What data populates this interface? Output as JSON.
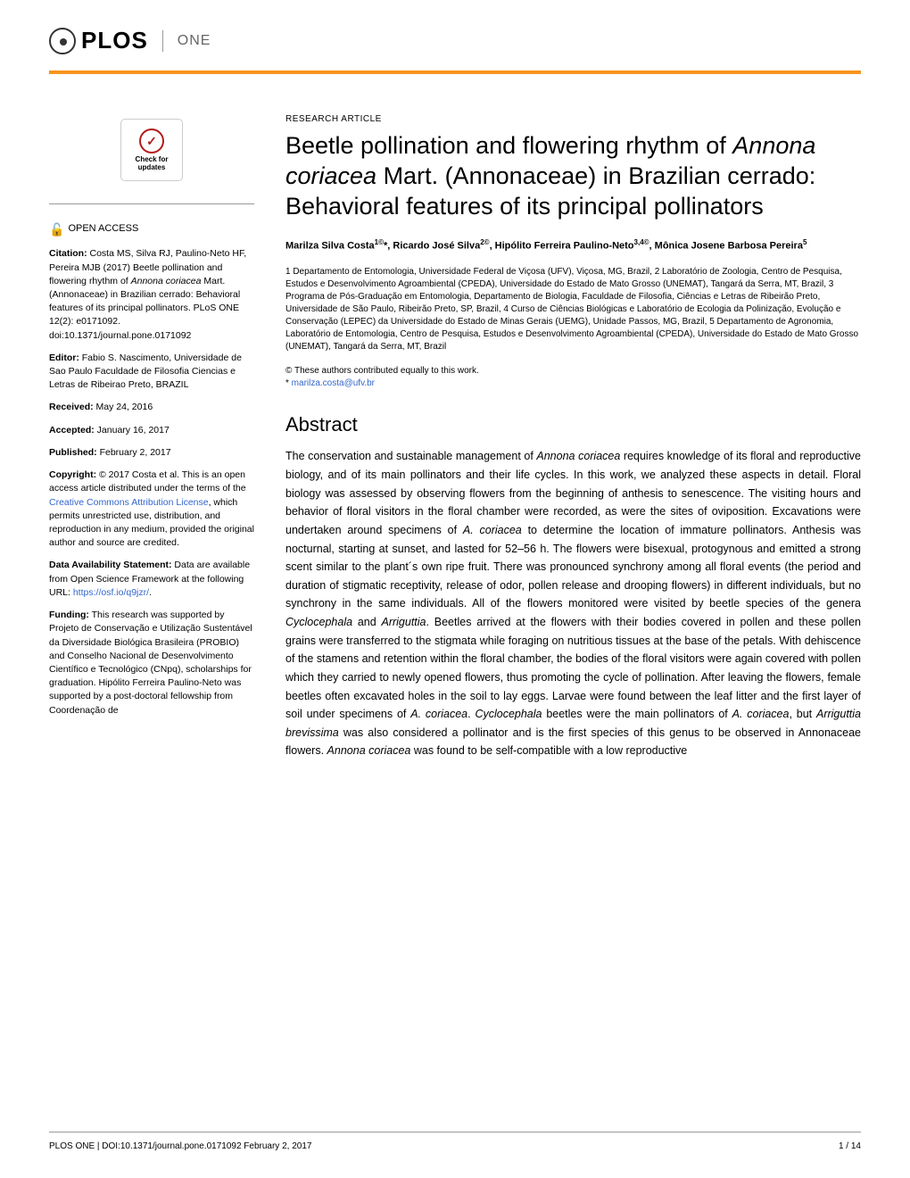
{
  "logo": {
    "plos": "PLOS",
    "one": "ONE"
  },
  "article_type": "RESEARCH ARTICLE",
  "title_parts": {
    "p1": "Beetle pollination and flowering rhythm of ",
    "italic1": "Annona coriacea",
    "p2": " Mart. (Annonaceae) in Brazilian cerrado: Behavioral features of its principal pollinators"
  },
  "authors_html": "Marilza Silva Costa<sup>1©</sup>*, Ricardo José Silva<sup>2©</sup>, Hipólito Ferreira Paulino-Neto<sup>3,4©</sup>, Mônica Josene Barbosa Pereira<sup>5</sup>",
  "affiliations": "1 Departamento de Entomologia, Universidade Federal de Viçosa (UFV), Viçosa, MG, Brazil, 2 Laboratório de Zoologia, Centro de Pesquisa, Estudos e Desenvolvimento Agroambiental (CPEDA), Universidade do Estado de Mato Grosso (UNEMAT), Tangará da Serra, MT, Brazil, 3 Programa de Pós-Graduação em Entomologia, Departamento de Biologia, Faculdade de Filosofia, Ciências e Letras de Ribeirão Preto, Universidade de São Paulo, Ribeirão Preto, SP, Brazil, 4 Curso de Ciências Biológicas e Laboratório de Ecologia da Polinização, Evolução e Conservação (LEPEC) da Universidade do Estado de Minas Gerais (UEMG), Unidade Passos, MG, Brazil, 5 Departamento de Agronomia, Laboratório de Entomologia, Centro de Pesquisa, Estudos e Desenvolvimento Agroambiental (CPEDA), Universidade do Estado de Mato Grosso (UNEMAT), Tangará da Serra, MT, Brazil",
  "contrib_note": "© These authors contributed equally to this work.",
  "email_prefix": "* ",
  "email": "marilza.costa@ufv.br",
  "abstract_heading": "Abstract",
  "abstract_parts": [
    {
      "t": "The conservation and sustainable management of "
    },
    {
      "t": "Annona coriacea",
      "i": true
    },
    {
      "t": " requires knowledge of its floral and reproductive biology, and of its main pollinators and their life cycles. In this work, we analyzed these aspects in detail. Floral biology was assessed by observing flowers from the beginning of anthesis to senescence. The visiting hours and behavior of floral visitors in the floral chamber were recorded, as were the sites of oviposition. Excavations were undertaken around specimens of "
    },
    {
      "t": "A. coriacea",
      "i": true
    },
    {
      "t": " to determine the location of immature pollinators. Anthesis was nocturnal, starting at sunset, and lasted for 52–56 h. The flowers were bisexual, protogynous and emitted a strong scent similar to the plant´s own ripe fruit. There was pronounced synchrony among all floral events (the period and duration of stigmatic receptivity, release of odor, pollen release and drooping flowers) in different individuals, but no synchrony in the same individuals. All of the flowers monitored were visited by beetle species of the genera "
    },
    {
      "t": "Cyclocephala",
      "i": true
    },
    {
      "t": " and "
    },
    {
      "t": "Arriguttia",
      "i": true
    },
    {
      "t": ". Beetles arrived at the flowers with their bodies covered in pollen and these pollen grains were transferred to the stigmata while foraging on nutritious tissues at the base of the petals. With dehiscence of the stamens and retention within the floral chamber, the bodies of the floral visitors were again covered with pollen which they carried to newly opened flowers, thus promoting the cycle of pollination. After leaving the flowers, female beetles often excavated holes in the soil to lay eggs. Larvae were found between the leaf litter and the first layer of soil under specimens of "
    },
    {
      "t": "A. coriacea",
      "i": true
    },
    {
      "t": ". "
    },
    {
      "t": "Cyclocephala",
      "i": true
    },
    {
      "t": " beetles were the main pollinators of "
    },
    {
      "t": "A. coriacea",
      "i": true
    },
    {
      "t": ", but "
    },
    {
      "t": "Arriguttia brevissima",
      "i": true
    },
    {
      "t": " was also considered a pollinator and is the first species of this genus to be observed in Annonaceae flowers. "
    },
    {
      "t": "Annona coriacea",
      "i": true
    },
    {
      "t": " was found to be self-compatible with a low reproductive"
    }
  ],
  "check_updates": {
    "line1": "Check for",
    "line2": "updates"
  },
  "open_access": "OPEN ACCESS",
  "sidebar": {
    "citation_label": "Citation:",
    "citation_text_p1": " Costa MS, Silva RJ, Paulino-Neto HF, Pereira MJB (2017) Beetle pollination and flowering rhythm of ",
    "citation_italic": "Annona coriacea",
    "citation_text_p2": " Mart. (Annonaceae) in Brazilian cerrado: Behavioral features of its principal pollinators. PLoS ONE 12(2): e0171092. doi:10.1371/journal.pone.0171092",
    "editor_label": "Editor:",
    "editor_text": " Fabio S. Nascimento, Universidade de Sao Paulo Faculdade de Filosofia Ciencias e Letras de Ribeirao Preto, BRAZIL",
    "received_label": "Received:",
    "received_text": " May 24, 2016",
    "accepted_label": "Accepted:",
    "accepted_text": " January 16, 2017",
    "published_label": "Published:",
    "published_text": " February 2, 2017",
    "copyright_label": "Copyright:",
    "copyright_text_p1": " © 2017 Costa et al. This is an open access article distributed under the terms of the ",
    "copyright_link": "Creative Commons Attribution License",
    "copyright_text_p2": ", which permits unrestricted use, distribution, and reproduction in any medium, provided the original author and source are credited.",
    "data_label": "Data Availability Statement:",
    "data_text": " Data are available from Open Science Framework at the following URL: ",
    "data_link": "https://osf.io/q9jzr/",
    "data_text_end": ".",
    "funding_label": "Funding:",
    "funding_text": " This research was supported by Projeto de Conservação e Utilização Sustentável da Diversidade Biológica Brasileira (PROBIO) and Conselho Nacional de Desenvolvimento Científico e Tecnológico (CNpq), scholarships for graduation. Hipólito Ferreira Paulino-Neto was supported by a post-doctoral fellowship from Coordenação de"
  },
  "footer": {
    "left": "PLOS ONE | DOI:10.1371/journal.pone.0171092    February 2, 2017",
    "right": "1 / 14"
  }
}
